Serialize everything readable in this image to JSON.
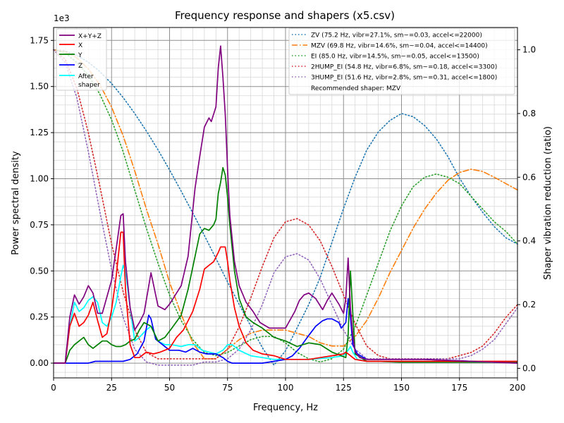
{
  "chart_data": {
    "type": "line",
    "title": "Frequency response and shapers (x5.csv)",
    "xlabel": "Frequency, Hz",
    "ylabel": "Power spectral density",
    "y2label": "Shaper vibration reduction (ratio)",
    "y_offset_label": "1e3",
    "xlim": [
      0,
      200
    ],
    "ylim": [
      -0.08,
      1.82
    ],
    "y2lim": [
      -0.03,
      1.07
    ],
    "x_ticks": [
      0,
      25,
      50,
      75,
      100,
      125,
      150,
      175,
      200
    ],
    "y_ticks": [
      "0.00",
      "0.25",
      "0.50",
      "0.75",
      "1.00",
      "1.25",
      "1.50",
      "1.75"
    ],
    "y2_ticks": [
      "0.0",
      "0.2",
      "0.4",
      "0.6",
      "0.8",
      "1.0"
    ],
    "grid": true,
    "left_legend_placement": "top-left",
    "right_legend_placement": "top-right",
    "psd_series": [
      {
        "name": "X+Y+Z",
        "color": "#800080",
        "x": [
          0,
          5,
          7,
          9,
          11,
          13,
          15,
          17,
          19,
          21,
          23,
          25,
          27,
          29,
          30,
          31,
          33,
          35,
          37,
          39,
          42,
          45,
          48,
          50,
          53,
          55,
          58,
          61,
          63,
          65,
          67,
          68,
          70,
          71,
          72,
          73,
          74,
          75,
          76,
          78,
          80,
          83,
          86,
          89,
          93,
          96,
          100,
          104,
          106,
          108,
          110,
          113,
          116,
          118,
          120,
          123,
          125,
          126,
          127,
          128,
          129,
          130,
          132,
          135,
          140,
          150,
          160,
          170,
          180,
          190,
          200
        ],
        "y": [
          0,
          0,
          0.25,
          0.37,
          0.32,
          0.36,
          0.42,
          0.38,
          0.27,
          0.27,
          0.36,
          0.45,
          0.62,
          0.8,
          0.81,
          0.55,
          0.3,
          0.18,
          0.22,
          0.27,
          0.49,
          0.31,
          0.29,
          0.32,
          0.38,
          0.42,
          0.58,
          0.95,
          1.12,
          1.28,
          1.33,
          1.31,
          1.39,
          1.6,
          1.72,
          1.55,
          1.35,
          1.05,
          0.8,
          0.55,
          0.42,
          0.33,
          0.28,
          0.22,
          0.19,
          0.19,
          0.19,
          0.28,
          0.34,
          0.37,
          0.38,
          0.35,
          0.29,
          0.34,
          0.38,
          0.32,
          0.27,
          0.35,
          0.57,
          0.3,
          0.15,
          0.06,
          0.03,
          0.02,
          0.02,
          0.02,
          0.02,
          0.015,
          0.01,
          0.005,
          0.0
        ]
      },
      {
        "name": "X",
        "color": "#ff0000",
        "x": [
          0,
          5,
          7,
          9,
          11,
          13,
          15,
          17,
          19,
          21,
          23,
          25,
          27,
          29,
          30,
          31,
          33,
          35,
          37,
          40,
          43,
          46,
          50,
          53,
          56,
          60,
          63,
          65,
          67,
          69,
          71,
          72,
          74,
          75,
          76,
          78,
          80,
          83,
          86,
          90,
          95,
          100,
          105,
          110,
          115,
          120,
          125,
          126,
          127,
          128,
          130,
          135,
          140,
          150,
          160,
          170,
          180,
          190,
          200
        ],
        "y": [
          0,
          0,
          0.2,
          0.27,
          0.2,
          0.22,
          0.26,
          0.33,
          0.23,
          0.14,
          0.16,
          0.29,
          0.47,
          0.71,
          0.71,
          0.4,
          0.1,
          0.03,
          0.03,
          0.06,
          0.05,
          0.06,
          0.08,
          0.14,
          0.18,
          0.28,
          0.4,
          0.51,
          0.53,
          0.55,
          0.6,
          0.63,
          0.63,
          0.55,
          0.45,
          0.3,
          0.2,
          0.11,
          0.07,
          0.05,
          0.04,
          0.02,
          0.02,
          0.02,
          0.03,
          0.04,
          0.05,
          0.06,
          0.05,
          0.04,
          0.02,
          0.01,
          0.01,
          0.01,
          0.01,
          0.01,
          0.01,
          0.01,
          0.01
        ]
      },
      {
        "name": "Y",
        "color": "#008000",
        "x": [
          0,
          5,
          7,
          9,
          11,
          13,
          15,
          17,
          19,
          21,
          23,
          25,
          27,
          29,
          31,
          33,
          35,
          37,
          39,
          42,
          45,
          48,
          51,
          55,
          58,
          61,
          63,
          65,
          67,
          69,
          70,
          71,
          72,
          73,
          74,
          75,
          76,
          78,
          80,
          83,
          86,
          90,
          95,
          100,
          105,
          110,
          115,
          120,
          124,
          126,
          127,
          128,
          130,
          135,
          140,
          150,
          160,
          170,
          180,
          190,
          200
        ],
        "y": [
          0,
          0,
          0.07,
          0.1,
          0.12,
          0.14,
          0.1,
          0.08,
          0.1,
          0.12,
          0.12,
          0.1,
          0.09,
          0.09,
          0.1,
          0.12,
          0.13,
          0.18,
          0.22,
          0.2,
          0.12,
          0.14,
          0.19,
          0.26,
          0.4,
          0.58,
          0.7,
          0.73,
          0.72,
          0.75,
          0.78,
          0.92,
          0.98,
          1.06,
          1.02,
          0.9,
          0.75,
          0.5,
          0.35,
          0.25,
          0.22,
          0.19,
          0.14,
          0.12,
          0.09,
          0.11,
          0.1,
          0.06,
          0.04,
          0.03,
          0.15,
          0.5,
          0.05,
          0.01,
          0.01,
          0.005,
          0.005,
          0.005,
          0.005,
          0.005,
          0.005
        ]
      },
      {
        "name": "Z",
        "color": "#0000ff",
        "x": [
          0,
          5,
          10,
          15,
          18,
          21,
          25,
          28,
          30,
          33,
          36,
          39,
          41,
          42,
          44,
          47,
          50,
          54,
          57,
          60,
          63,
          66,
          70,
          73,
          75,
          77,
          80,
          85,
          90,
          95,
          100,
          103,
          106,
          110,
          113,
          116,
          118,
          120,
          123,
          124,
          126,
          127,
          128,
          129,
          131,
          135,
          140,
          150,
          160,
          170,
          180,
          190,
          200
        ],
        "y": [
          0,
          0,
          0.0,
          0.0,
          0.01,
          0.01,
          0.01,
          0.01,
          0.01,
          0.02,
          0.05,
          0.12,
          0.26,
          0.24,
          0.13,
          0.1,
          0.07,
          0.07,
          0.06,
          0.08,
          0.06,
          0.05,
          0.05,
          0.03,
          0.01,
          0.0,
          0.0,
          0.0,
          0.0,
          0.01,
          0.02,
          0.04,
          0.08,
          0.15,
          0.2,
          0.23,
          0.24,
          0.24,
          0.22,
          0.19,
          0.22,
          0.35,
          0.25,
          0.1,
          0.05,
          0.02,
          0.02,
          0.02,
          0.02,
          0.015,
          0.01,
          0.005,
          0.005
        ]
      },
      {
        "name": "After\nshaper",
        "color": "#00ffff",
        "x": [
          0,
          5,
          7,
          9,
          11,
          13,
          15,
          17,
          19,
          21,
          23,
          25,
          27,
          29,
          30,
          31,
          33,
          35,
          37,
          40,
          42,
          45,
          48,
          51,
          55,
          58,
          61,
          64,
          67,
          70,
          73,
          75,
          77,
          80,
          85,
          90,
          95,
          100,
          110,
          120,
          125,
          127,
          128,
          129,
          131,
          135,
          140,
          150,
          160,
          170,
          180,
          190,
          200
        ],
        "y": [
          0,
          0,
          0.2,
          0.33,
          0.28,
          0.3,
          0.34,
          0.36,
          0.33,
          0.22,
          0.2,
          0.25,
          0.33,
          0.47,
          0.53,
          0.5,
          0.3,
          0.12,
          0.14,
          0.18,
          0.2,
          0.12,
          0.1,
          0.1,
          0.09,
          0.1,
          0.1,
          0.07,
          0.06,
          0.05,
          0.07,
          0.1,
          0.1,
          0.07,
          0.04,
          0.03,
          0.02,
          0.02,
          0.02,
          0.03,
          0.04,
          0.07,
          0.09,
          0.06,
          0.02,
          0.01,
          0.01,
          0.005,
          0.005,
          0.005,
          0.005,
          0.005,
          0.005
        ]
      }
    ],
    "shaper_series": [
      {
        "name": "ZV (75.2 Hz, vibr=27.1%, sm~=0.03, accel<=22000)",
        "color": "#1f77b4",
        "dash": "dotted",
        "x": [
          0,
          5,
          10,
          15,
          20,
          25,
          30,
          35,
          40,
          45,
          50,
          55,
          60,
          65,
          70,
          75,
          80,
          85,
          90,
          95,
          100,
          105,
          110,
          115,
          120,
          125,
          130,
          135,
          140,
          145,
          150,
          155,
          160,
          165,
          170,
          175,
          180,
          185,
          190,
          195,
          200
        ],
        "y": [
          1.0,
          0.996,
          0.983,
          0.961,
          0.931,
          0.894,
          0.85,
          0.8,
          0.745,
          0.686,
          0.623,
          0.556,
          0.488,
          0.417,
          0.345,
          0.271,
          0.201,
          0.133,
          0.065,
          0.01,
          0.055,
          0.127,
          0.2,
          0.286,
          0.395,
          0.502,
          0.6,
          0.685,
          0.742,
          0.778,
          0.8,
          0.79,
          0.762,
          0.72,
          0.665,
          0.597,
          0.54,
          0.49,
          0.445,
          0.41,
          0.39
        ]
      },
      {
        "name": "MZV (69.8 Hz, vibr=14.6%, sm~=0.04, accel<=14400)",
        "color": "#ff7f0e",
        "dash": "dashdot",
        "x": [
          0,
          5,
          10,
          15,
          20,
          25,
          30,
          35,
          40,
          45,
          50,
          55,
          60,
          65,
          70,
          75,
          80,
          85,
          90,
          95,
          100,
          105,
          110,
          115,
          120,
          125,
          130,
          135,
          140,
          145,
          150,
          155,
          160,
          165,
          170,
          175,
          180,
          185,
          190,
          195,
          200
        ],
        "y": [
          1.0,
          0.994,
          0.975,
          0.94,
          0.89,
          0.82,
          0.73,
          0.62,
          0.5,
          0.39,
          0.27,
          0.17,
          0.08,
          0.03,
          0.03,
          0.06,
          0.09,
          0.11,
          0.12,
          0.12,
          0.12,
          0.11,
          0.1,
          0.08,
          0.07,
          0.07,
          0.1,
          0.15,
          0.22,
          0.3,
          0.37,
          0.44,
          0.5,
          0.55,
          0.59,
          0.615,
          0.625,
          0.618,
          0.6,
          0.58,
          0.56
        ]
      },
      {
        "name": "EI (85.0 Hz, vibr=14.5%, sm~=0.05, accel<=13500)",
        "color": "#2ca02c",
        "dash": "dotted",
        "x": [
          0,
          5,
          10,
          15,
          20,
          25,
          30,
          35,
          40,
          45,
          50,
          55,
          60,
          65,
          70,
          75,
          80,
          85,
          90,
          95,
          100,
          105,
          110,
          115,
          120,
          125,
          130,
          135,
          140,
          145,
          150,
          155,
          160,
          165,
          170,
          175,
          180,
          185,
          190,
          195,
          200
        ],
        "y": [
          1.0,
          0.99,
          0.96,
          0.92,
          0.86,
          0.78,
          0.68,
          0.56,
          0.44,
          0.33,
          0.23,
          0.15,
          0.09,
          0.05,
          0.04,
          0.05,
          0.07,
          0.09,
          0.1,
          0.1,
          0.08,
          0.05,
          0.03,
          0.02,
          0.03,
          0.06,
          0.13,
          0.23,
          0.33,
          0.43,
          0.51,
          0.57,
          0.6,
          0.61,
          0.6,
          0.58,
          0.54,
          0.5,
          0.46,
          0.43,
          0.39
        ]
      },
      {
        "name": "2HUMP_EI (54.8 Hz, vibr=6.8%, sm~=0.18, accel<=3300)",
        "color": "#d62728",
        "dash": "dotted",
        "x": [
          0,
          5,
          10,
          15,
          20,
          25,
          30,
          35,
          40,
          45,
          50,
          55,
          60,
          65,
          70,
          75,
          80,
          85,
          90,
          95,
          100,
          105,
          110,
          115,
          120,
          125,
          130,
          135,
          140,
          145,
          150,
          155,
          160,
          165,
          170,
          175,
          180,
          185,
          190,
          195,
          200
        ],
        "y": [
          1.0,
          0.97,
          0.88,
          0.74,
          0.57,
          0.39,
          0.24,
          0.12,
          0.05,
          0.03,
          0.03,
          0.03,
          0.03,
          0.03,
          0.03,
          0.06,
          0.13,
          0.22,
          0.32,
          0.41,
          0.46,
          0.47,
          0.45,
          0.4,
          0.32,
          0.23,
          0.14,
          0.07,
          0.04,
          0.03,
          0.03,
          0.03,
          0.03,
          0.03,
          0.03,
          0.04,
          0.05,
          0.07,
          0.11,
          0.16,
          0.2
        ]
      },
      {
        "name": "3HUMP_EI (51.6 Hz, vibr=2.8%, sm~=0.31, accel<=1800)",
        "color": "#9467bd",
        "dash": "dotted",
        "x": [
          0,
          5,
          10,
          15,
          20,
          25,
          30,
          35,
          40,
          45,
          50,
          55,
          60,
          65,
          70,
          75,
          80,
          85,
          90,
          95,
          100,
          105,
          110,
          115,
          120,
          125,
          130,
          135,
          140,
          145,
          150,
          155,
          160,
          165,
          170,
          175,
          180,
          185,
          190,
          195,
          200
        ],
        "y": [
          1.0,
          0.96,
          0.85,
          0.68,
          0.49,
          0.31,
          0.16,
          0.06,
          0.02,
          0.01,
          0.01,
          0.01,
          0.01,
          0.02,
          0.02,
          0.03,
          0.06,
          0.12,
          0.2,
          0.3,
          0.35,
          0.36,
          0.34,
          0.28,
          0.2,
          0.12,
          0.06,
          0.03,
          0.03,
          0.03,
          0.03,
          0.03,
          0.03,
          0.03,
          0.03,
          0.03,
          0.04,
          0.06,
          0.09,
          0.14,
          0.19
        ]
      }
    ],
    "recommended_text": "Recommended shaper: MZV"
  }
}
